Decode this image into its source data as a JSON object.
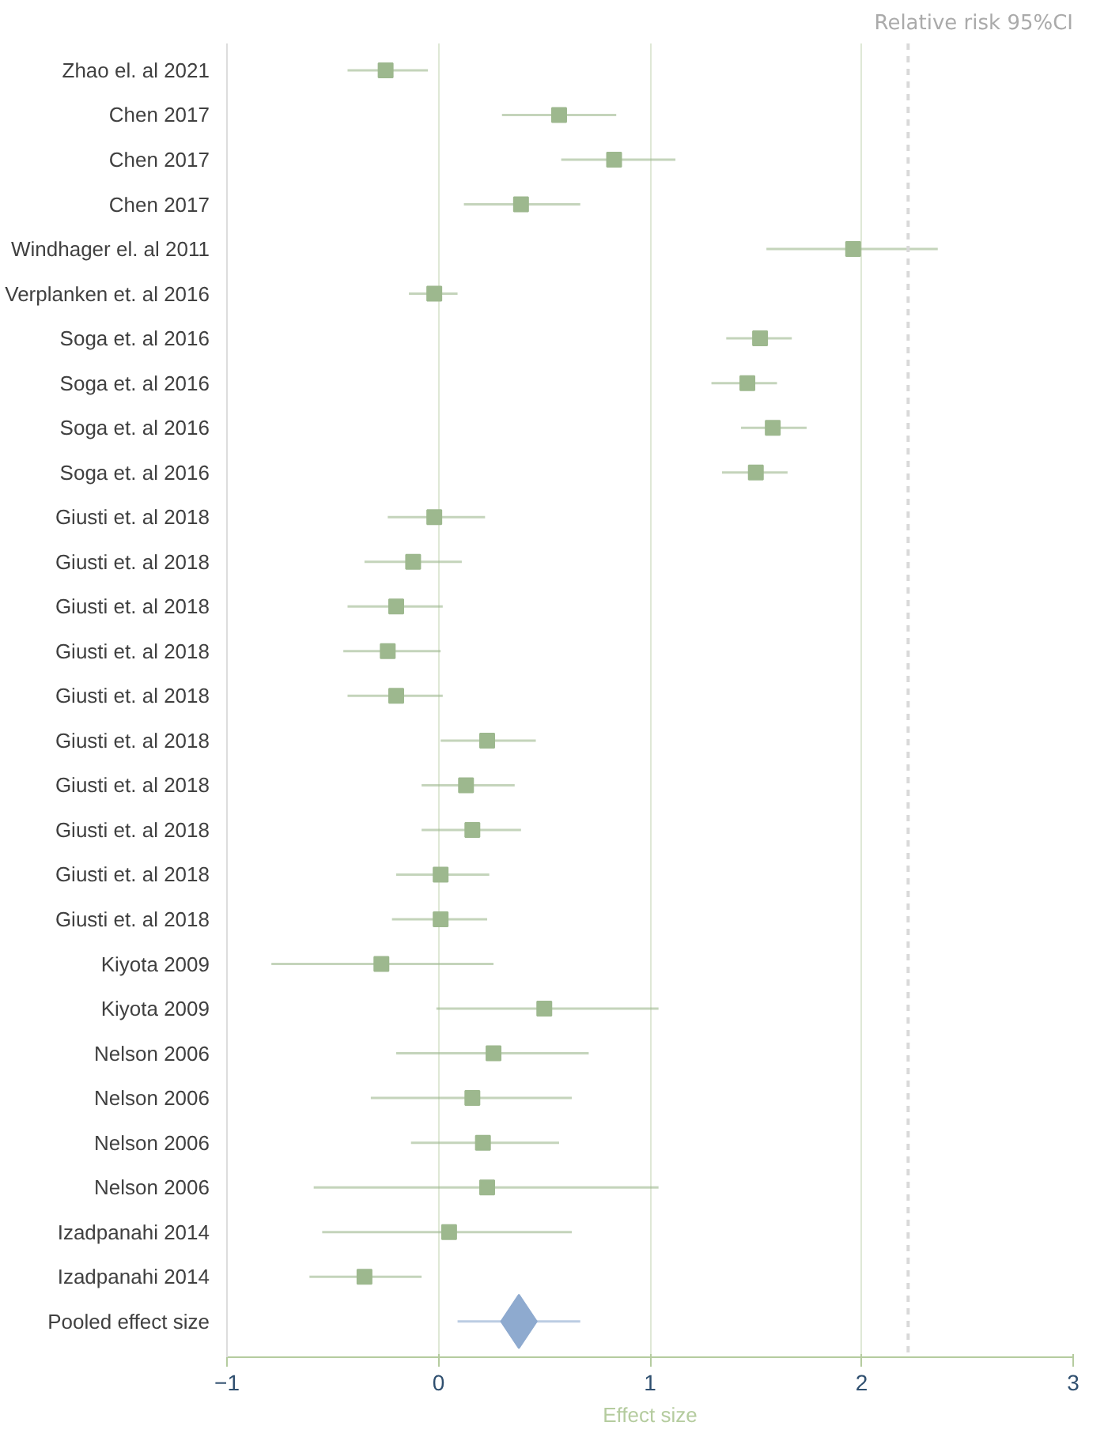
{
  "chart_data": {
    "type": "scatter",
    "orientation": "horizontal",
    "title": "Relative risk 95%CI",
    "xlabel": "Effect size",
    "categories": [
      "Zhao el. al 2021",
      "Chen 2017",
      "Chen 2017",
      "Chen 2017",
      "Windhager el. al 2011",
      "Verplanken et. al 2016",
      "Soga et. al 2016",
      "Soga et. al 2016",
      "Soga et. al 2016",
      "Soga et. al 2016",
      "Giusti et. al 2018",
      "Giusti et. al 2018",
      "Giusti et. al 2018",
      "Giusti et. al 2018",
      "Giusti et. al 2018",
      "Giusti et. al 2018",
      "Giusti et. al 2018",
      "Giusti et. al 2018",
      "Giusti et. al 2018",
      "Giusti et. al 2018",
      "Kiyota 2009",
      "Kiyota 2009",
      "Nelson 2006",
      "Nelson 2006",
      "Nelson 2006",
      "Nelson 2006",
      "Izadpanahi 2014",
      "Izadpanahi 2014",
      "Pooled effect size"
    ],
    "series": [
      {
        "color": "#9db88e",
        "marker": "square",
        "values": [
          -0.25,
          0.57,
          0.83,
          0.39,
          1.96,
          -0.02,
          1.52,
          1.46,
          1.58,
          1.5,
          -0.02,
          -0.12,
          -0.2,
          -0.24,
          -0.2,
          0.23,
          0.13,
          0.16,
          0.01,
          0.01,
          -0.27,
          0.5,
          0.26,
          0.16,
          0.21,
          0.23,
          0.05,
          -0.35,
          null
        ],
        "errors": [
          [
            -0.43,
            -0.05
          ],
          [
            0.3,
            0.84
          ],
          [
            0.58,
            1.12
          ],
          [
            0.12,
            0.67
          ],
          [
            1.55,
            2.36
          ],
          [
            -0.14,
            0.09
          ],
          [
            1.36,
            1.67
          ],
          [
            1.29,
            1.6
          ],
          [
            1.43,
            1.74
          ],
          [
            1.34,
            1.65
          ],
          [
            -0.24,
            0.22
          ],
          [
            -0.35,
            0.11
          ],
          [
            -0.43,
            0.02
          ],
          [
            -0.45,
            0.01
          ],
          [
            -0.43,
            0.02
          ],
          [
            0.01,
            0.46
          ],
          [
            -0.08,
            0.36
          ],
          [
            -0.08,
            0.39
          ],
          [
            -0.2,
            0.24
          ],
          [
            -0.22,
            0.23
          ],
          [
            -0.79,
            0.26
          ],
          [
            -0.01,
            1.04
          ],
          [
            -0.2,
            0.71
          ],
          [
            -0.32,
            0.63
          ],
          [
            -0.13,
            0.57
          ],
          [
            -0.59,
            1.04
          ],
          [
            -0.55,
            0.63
          ],
          [
            -0.61,
            -0.08
          ],
          null
        ]
      },
      {
        "color": "#8eaacf",
        "marker": "diamond",
        "values": [
          null,
          null,
          null,
          null,
          null,
          null,
          null,
          null,
          null,
          null,
          null,
          null,
          null,
          null,
          null,
          null,
          null,
          null,
          null,
          null,
          null,
          null,
          null,
          null,
          null,
          null,
          null,
          null,
          0.38
        ],
        "errors": [
          null,
          null,
          null,
          null,
          null,
          null,
          null,
          null,
          null,
          null,
          null,
          null,
          null,
          null,
          null,
          null,
          null,
          null,
          null,
          null,
          null,
          null,
          null,
          null,
          null,
          null,
          null,
          null,
          [
            0.09,
            0.67
          ]
        ]
      }
    ],
    "xlim": [
      -1,
      3
    ],
    "xticks": [
      -1,
      0,
      1,
      2,
      3
    ],
    "grid": "x",
    "ref_lines": [
      {
        "axis": "x",
        "value": 2.22,
        "color": "#d9d9d9",
        "line_style": "dashed"
      }
    ]
  }
}
